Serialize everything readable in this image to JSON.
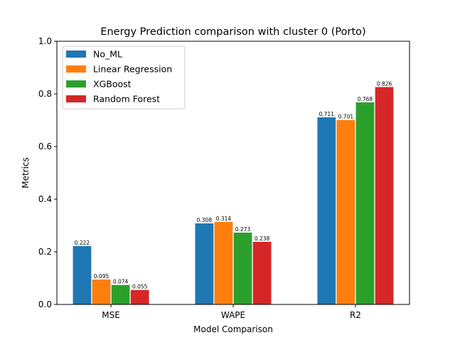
{
  "chart_data": {
    "type": "bar",
    "title": "Energy Prediction comparison with cluster 0 (Porto)",
    "xlabel": "Model Comparison",
    "ylabel": "Metrics",
    "ylim": [
      0,
      1.0
    ],
    "yticks": [
      0.0,
      0.2,
      0.4,
      0.6,
      0.8,
      1.0
    ],
    "ytick_labels": [
      "0.0",
      "0.2",
      "0.4",
      "0.6",
      "0.8",
      "1.0"
    ],
    "categories": [
      "MSE",
      "WAPE",
      "R2"
    ],
    "series": [
      {
        "name": "No_ML",
        "color": "#1f77b4",
        "values": [
          0.222,
          0.308,
          0.711
        ],
        "labels": [
          "0.222",
          "0.308",
          "0.711"
        ]
      },
      {
        "name": "Linear Regression",
        "color": "#ff7f0e",
        "values": [
          0.095,
          0.314,
          0.701
        ],
        "labels": [
          "0.095",
          "0.314",
          "0.701"
        ]
      },
      {
        "name": "XGBoost",
        "color": "#2ca02c",
        "values": [
          0.074,
          0.273,
          0.768
        ],
        "labels": [
          "0.074",
          "0.273",
          "0.768"
        ]
      },
      {
        "name": "Random Forest",
        "color": "#d62728",
        "values": [
          0.055,
          0.238,
          0.826
        ],
        "labels": [
          "0.055",
          "0.238",
          "0.826"
        ]
      }
    ],
    "legend_position": "top-left",
    "grid": false
  }
}
